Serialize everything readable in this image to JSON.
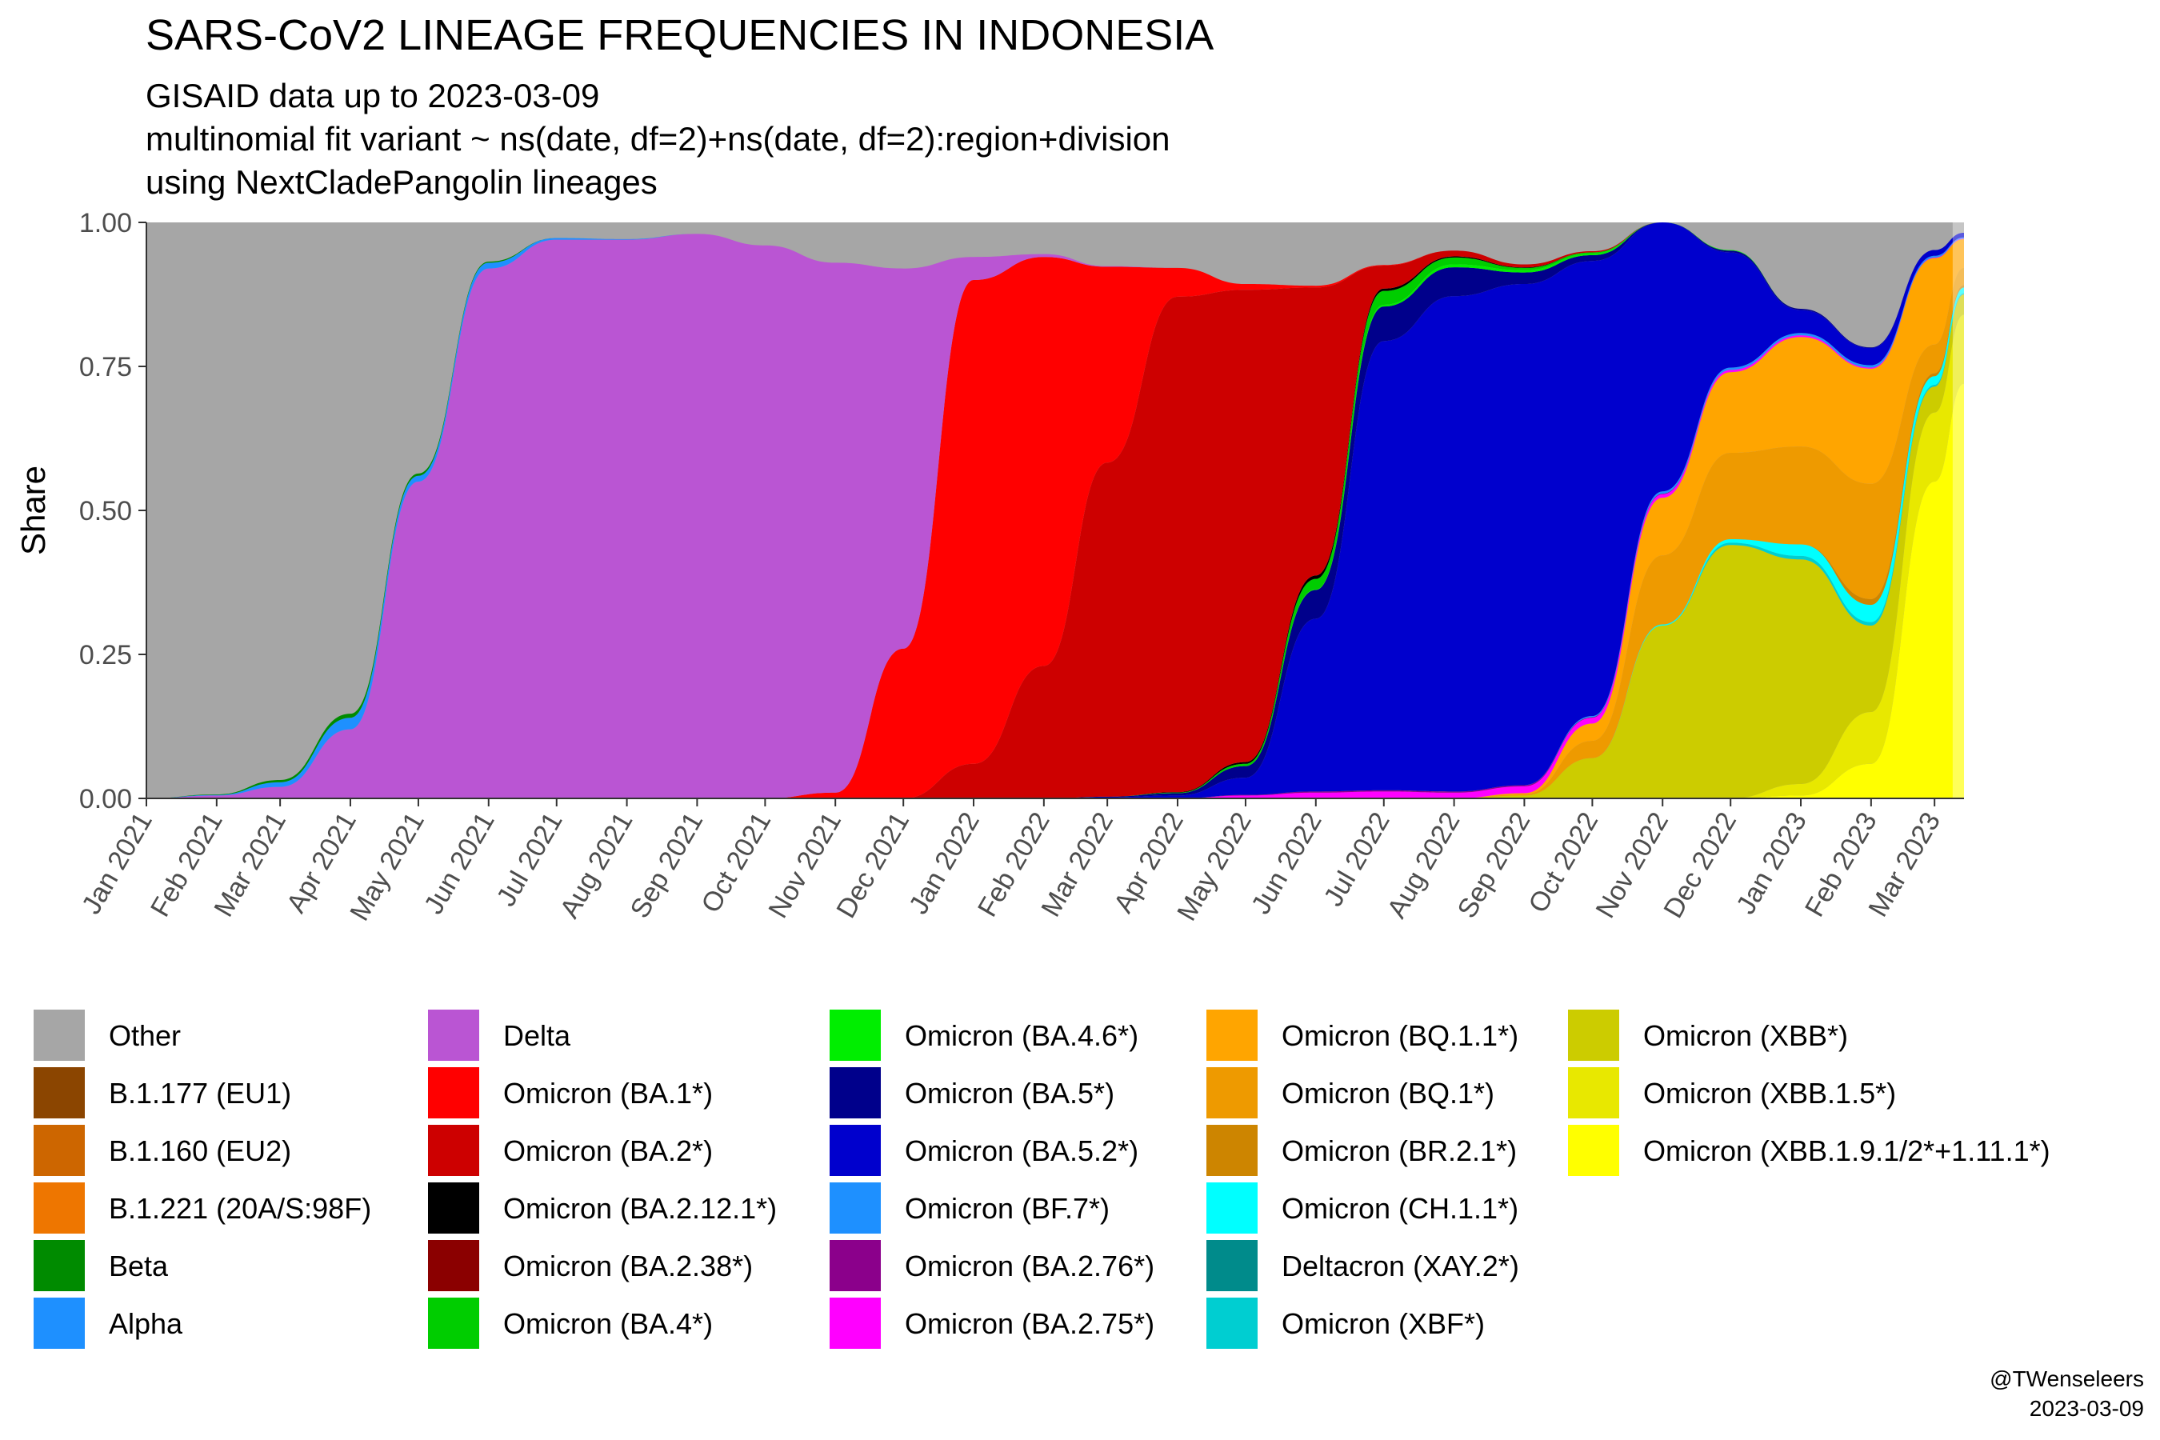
{
  "chart_data": {
    "type": "area",
    "stacked": true,
    "normalized": true,
    "title": "SARS-CoV2 LINEAGE FREQUENCIES IN INDONESIA",
    "subtitle": [
      "GISAID data up to 2023-03-09",
      "multinomial fit variant ~ ns(date, df=2)+ns(date, df=2):region+division",
      "using NextCladePangolin lineages"
    ],
    "ylabel": "Share",
    "ylim": [
      0,
      1
    ],
    "yticks": [
      "0.00",
      "0.25",
      "0.50",
      "0.75",
      "1.00"
    ],
    "xrange": [
      "2021-01-01",
      "2023-03-14"
    ],
    "xticks": [
      {
        "label": "Jan 2021",
        "date": "2021-01-01"
      },
      {
        "label": "Feb 2021",
        "date": "2021-02-01"
      },
      {
        "label": "Mar 2021",
        "date": "2021-03-01"
      },
      {
        "label": "Apr 2021",
        "date": "2021-04-01"
      },
      {
        "label": "May 2021",
        "date": "2021-05-01"
      },
      {
        "label": "Jun 2021",
        "date": "2021-06-01"
      },
      {
        "label": "Jul 2021",
        "date": "2021-07-01"
      },
      {
        "label": "Aug 2021",
        "date": "2021-08-01"
      },
      {
        "label": "Sep 2021",
        "date": "2021-09-01"
      },
      {
        "label": "Oct 2021",
        "date": "2021-10-01"
      },
      {
        "label": "Nov 2021",
        "date": "2021-11-01"
      },
      {
        "label": "Dec 2021",
        "date": "2021-12-01"
      },
      {
        "label": "Jan 2022",
        "date": "2022-01-01"
      },
      {
        "label": "Feb 2022",
        "date": "2022-02-01"
      },
      {
        "label": "Mar 2022",
        "date": "2022-03-01"
      },
      {
        "label": "Apr 2022",
        "date": "2022-04-01"
      },
      {
        "label": "May 2022",
        "date": "2022-05-01"
      },
      {
        "label": "Jun 2022",
        "date": "2022-06-01"
      },
      {
        "label": "Jul 2022",
        "date": "2022-07-01"
      },
      {
        "label": "Aug 2022",
        "date": "2022-08-01"
      },
      {
        "label": "Sep 2022",
        "date": "2022-09-01"
      },
      {
        "label": "Oct 2022",
        "date": "2022-10-01"
      },
      {
        "label": "Nov 2022",
        "date": "2022-11-01"
      },
      {
        "label": "Dec 2022",
        "date": "2022-12-01"
      },
      {
        "label": "Jan 2023",
        "date": "2023-01-01"
      },
      {
        "label": "Feb 2023",
        "date": "2023-02-01"
      },
      {
        "label": "Mar 2023",
        "date": "2023-03-01"
      }
    ],
    "x": [
      "2021-01-01",
      "2021-02-01",
      "2021-03-01",
      "2021-04-01",
      "2021-05-01",
      "2021-06-01",
      "2021-07-01",
      "2021-08-01",
      "2021-09-01",
      "2021-10-01",
      "2021-11-01",
      "2021-12-01",
      "2022-01-01",
      "2022-02-01",
      "2022-03-01",
      "2022-04-01",
      "2022-05-01",
      "2022-06-01",
      "2022-07-01",
      "2022-08-01",
      "2022-09-01",
      "2022-10-01",
      "2022-11-01",
      "2022-12-01",
      "2023-01-01",
      "2023-02-01",
      "2023-03-01",
      "2023-03-14"
    ],
    "series": [
      {
        "name": "Omicron (XBB.1.9.1/2*+1.11.1*)",
        "color": "#FFFF00",
        "values": [
          0,
          0,
          0,
          0,
          0,
          0,
          0,
          0,
          0,
          0,
          0,
          0,
          0,
          0,
          0,
          0,
          0,
          0,
          0,
          0,
          0,
          0,
          0,
          0,
          0.005,
          0.06,
          0.55,
          0.72
        ]
      },
      {
        "name": "Omicron (XBB.1.5*)",
        "color": "#E8E800",
        "values": [
          0,
          0,
          0,
          0,
          0,
          0,
          0,
          0,
          0,
          0,
          0,
          0,
          0,
          0,
          0,
          0,
          0,
          0,
          0,
          0,
          0,
          0,
          0,
          0,
          0.02,
          0.09,
          0.12,
          0.12
        ]
      },
      {
        "name": "Omicron (XBB*)",
        "color": "#CCCC00",
        "values": [
          0,
          0,
          0,
          0,
          0,
          0,
          0,
          0,
          0,
          0,
          0,
          0,
          0,
          0,
          0,
          0,
          0,
          0,
          0,
          0,
          0.005,
          0.07,
          0.3,
          0.44,
          0.39,
          0.15,
          0.045,
          0.035
        ]
      },
      {
        "name": "Omicron (XBF*)",
        "color": "#00CED1",
        "values": [
          0,
          0,
          0,
          0,
          0,
          0,
          0,
          0,
          0,
          0,
          0,
          0,
          0,
          0,
          0,
          0,
          0,
          0,
          0,
          0,
          0,
          0,
          0,
          0.004,
          0.006,
          0.006,
          0.003,
          0.002
        ]
      },
      {
        "name": "Deltacron (XAY.2*)",
        "color": "#008B8B",
        "values": [
          0,
          0,
          0,
          0,
          0,
          0,
          0,
          0,
          0,
          0,
          0,
          0,
          0,
          0,
          0,
          0,
          0,
          0,
          0,
          0,
          0,
          0,
          0,
          0,
          0,
          0,
          0,
          0
        ]
      },
      {
        "name": "Omicron (CH.1.1*)",
        "color": "#00FFFF",
        "values": [
          0,
          0,
          0,
          0,
          0,
          0,
          0,
          0,
          0,
          0,
          0,
          0,
          0,
          0,
          0,
          0,
          0,
          0,
          0,
          0,
          0,
          0,
          0.002,
          0.006,
          0.02,
          0.03,
          0.015,
          0.01
        ]
      },
      {
        "name": "Omicron (BR.2.1*)",
        "color": "#CD8500",
        "values": [
          0,
          0,
          0,
          0,
          0,
          0,
          0,
          0,
          0,
          0,
          0,
          0,
          0,
          0,
          0,
          0,
          0,
          0,
          0,
          0,
          0,
          0,
          0,
          0,
          0,
          0.01,
          0.005,
          0.004
        ]
      },
      {
        "name": "Omicron (BQ.1*)",
        "color": "#EE9A00",
        "values": [
          0,
          0,
          0,
          0,
          0,
          0,
          0,
          0,
          0,
          0,
          0,
          0,
          0,
          0,
          0,
          0,
          0,
          0,
          0,
          0,
          0.002,
          0.03,
          0.12,
          0.15,
          0.17,
          0.2,
          0.05,
          0.03
        ]
      },
      {
        "name": "Omicron (BQ.1.1*)",
        "color": "#FFA500",
        "values": [
          0,
          0,
          0,
          0,
          0,
          0,
          0,
          0,
          0,
          0,
          0,
          0,
          0,
          0,
          0,
          0,
          0,
          0,
          0,
          0,
          0.002,
          0.03,
          0.1,
          0.14,
          0.19,
          0.2,
          0.15,
          0.05
        ]
      },
      {
        "name": "Omicron (BA.2.75*)",
        "color": "#FF00FF",
        "values": [
          0,
          0,
          0,
          0,
          0,
          0,
          0,
          0,
          0,
          0,
          0,
          0,
          0,
          0,
          0,
          0,
          0.005,
          0.01,
          0.012,
          0.01,
          0.012,
          0.01,
          0.006,
          0.004,
          0.003,
          0.002,
          0.001,
          0.001
        ]
      },
      {
        "name": "Omicron (BA.2.76*)",
        "color": "#8B008B",
        "values": [
          0,
          0,
          0,
          0,
          0,
          0,
          0,
          0,
          0,
          0,
          0,
          0,
          0,
          0,
          0,
          0,
          0.001,
          0.002,
          0.002,
          0.002,
          0.002,
          0.001,
          0.001,
          0,
          0,
          0,
          0,
          0
        ]
      },
      {
        "name": "Omicron (BF.7*)",
        "color": "#1E90FF",
        "values": [
          0,
          0,
          0,
          0,
          0,
          0,
          0,
          0,
          0,
          0,
          0,
          0,
          0,
          0,
          0,
          0,
          0,
          0,
          0,
          0,
          0,
          0.002,
          0.004,
          0.004,
          0.004,
          0.004,
          0.003,
          0.002
        ]
      },
      {
        "name": "Omicron (BA.5.2*)",
        "color": "#0000CD",
        "values": [
          0,
          0,
          0,
          0,
          0,
          0,
          0,
          0,
          0,
          0,
          0,
          0,
          0,
          0,
          0.002,
          0.005,
          0.03,
          0.3,
          0.78,
          0.86,
          0.87,
          0.79,
          0.48,
          0.2,
          0.04,
          0.03,
          0.01,
          0.008
        ]
      },
      {
        "name": "Omicron (BA.5*)",
        "color": "#00008B",
        "values": [
          0,
          0,
          0,
          0,
          0,
          0,
          0,
          0,
          0,
          0,
          0,
          0,
          0,
          0,
          0.001,
          0.004,
          0.02,
          0.05,
          0.06,
          0.05,
          0.02,
          0.01,
          0.005,
          0.003,
          0.002,
          0.001,
          0,
          0
        ]
      },
      {
        "name": "Omicron (BA.4.6*)",
        "color": "#00EE00",
        "values": [
          0,
          0,
          0,
          0,
          0,
          0,
          0,
          0,
          0,
          0,
          0,
          0,
          0,
          0,
          0,
          0,
          0,
          0.001,
          0.003,
          0.005,
          0.004,
          0.003,
          0.002,
          0.001,
          0,
          0,
          0,
          0
        ]
      },
      {
        "name": "Omicron (BA.4*)",
        "color": "#00CD00",
        "values": [
          0,
          0,
          0,
          0,
          0,
          0,
          0,
          0,
          0,
          0,
          0,
          0,
          0,
          0,
          0,
          0.001,
          0.004,
          0.018,
          0.024,
          0.012,
          0.004,
          0.002,
          0.001,
          0,
          0,
          0,
          0,
          0
        ]
      },
      {
        "name": "Omicron (BA.2.38*)",
        "color": "#8B0000",
        "values": [
          0,
          0,
          0,
          0,
          0,
          0,
          0,
          0,
          0,
          0,
          0,
          0,
          0,
          0,
          0,
          0,
          0,
          0,
          0,
          0,
          0,
          0,
          0,
          0,
          0,
          0,
          0,
          0
        ]
      },
      {
        "name": "Omicron (BA.2.12.1*)",
        "color": "#000000",
        "values": [
          0,
          0,
          0,
          0,
          0,
          0,
          0,
          0,
          0,
          0,
          0,
          0,
          0,
          0,
          0,
          0.001,
          0.003,
          0.006,
          0.004,
          0.002,
          0.001,
          0,
          0,
          0,
          0,
          0,
          0,
          0
        ]
      },
      {
        "name": "Omicron (BA.2*)",
        "color": "#CD0000",
        "values": [
          0,
          0,
          0,
          0,
          0,
          0,
          0,
          0,
          0,
          0,
          0,
          0,
          0.06,
          0.23,
          0.58,
          0.86,
          0.82,
          0.5,
          0.04,
          0.01,
          0.005,
          0.002,
          0.001,
          0,
          0,
          0,
          0,
          0
        ]
      },
      {
        "name": "Omicron (BA.1*)",
        "color": "#FF0000",
        "values": [
          0,
          0,
          0,
          0,
          0,
          0,
          0,
          0,
          0,
          0,
          0.01,
          0.26,
          0.84,
          0.71,
          0.34,
          0.05,
          0.01,
          0.003,
          0.001,
          0,
          0,
          0,
          0,
          0,
          0,
          0,
          0,
          0
        ]
      },
      {
        "name": "Delta",
        "color": "#BA55D3",
        "values": [
          0,
          0.005,
          0.02,
          0.12,
          0.55,
          0.92,
          0.97,
          0.97,
          0.98,
          0.96,
          0.92,
          0.66,
          0.04,
          0.005,
          0.001,
          0,
          0,
          0,
          0,
          0,
          0,
          0,
          0,
          0,
          0,
          0,
          0,
          0
        ]
      },
      {
        "name": "Alpha",
        "color": "#1E90FF",
        "values": [
          0,
          0.001,
          0.008,
          0.02,
          0.01,
          0.01,
          0.003,
          0.001,
          0,
          0,
          0,
          0,
          0,
          0,
          0,
          0,
          0,
          0,
          0,
          0,
          0,
          0,
          0,
          0,
          0,
          0,
          0,
          0
        ]
      },
      {
        "name": "Beta",
        "color": "#008B00",
        "values": [
          0,
          0.001,
          0.004,
          0.007,
          0.004,
          0.002,
          0,
          0,
          0,
          0,
          0,
          0,
          0,
          0,
          0,
          0,
          0,
          0,
          0,
          0,
          0,
          0,
          0,
          0,
          0,
          0,
          0,
          0
        ]
      },
      {
        "name": "B.1.221 (20A/S:98F)",
        "color": "#EE7600",
        "values": [
          0,
          0,
          0,
          0,
          0,
          0,
          0,
          0,
          0,
          0,
          0,
          0,
          0,
          0,
          0,
          0,
          0,
          0,
          0,
          0,
          0,
          0,
          0,
          0,
          0,
          0,
          0,
          0
        ]
      },
      {
        "name": "B.1.160 (EU2)",
        "color": "#CD6600",
        "values": [
          0,
          0,
          0,
          0,
          0,
          0,
          0,
          0,
          0,
          0,
          0,
          0,
          0,
          0,
          0,
          0,
          0,
          0,
          0,
          0,
          0,
          0,
          0,
          0,
          0,
          0,
          0,
          0
        ]
      },
      {
        "name": "B.1.177 (EU1)",
        "color": "#8B4500",
        "values": [
          0,
          0,
          0,
          0,
          0,
          0,
          0,
          0,
          0,
          0,
          0,
          0,
          0,
          0,
          0,
          0,
          0,
          0,
          0,
          0,
          0,
          0,
          0,
          0,
          0,
          0,
          0,
          0
        ]
      },
      {
        "name": "Other",
        "color": "#A6A6A6",
        "values": null
      }
    ],
    "legend": {
      "placement": "bottom",
      "columns": [
        [
          "Other",
          "B.1.177 (EU1)",
          "B.1.160 (EU2)",
          "B.1.221 (20A/S:98F)",
          "Beta",
          "Alpha"
        ],
        [
          "Delta",
          "Omicron (BA.1*)",
          "Omicron (BA.2*)",
          "Omicron (BA.2.12.1*)",
          "Omicron (BA.2.38*)",
          "Omicron (BA.4*)"
        ],
        [
          "Omicron (BA.4.6*)",
          "Omicron (BA.5*)",
          "Omicron (BA.5.2*)",
          "Omicron (BF.7*)",
          "Omicron (BA.2.76*)",
          "Omicron (BA.2.75*)"
        ],
        [
          "Omicron (BQ.1.1*)",
          "Omicron (BQ.1*)",
          "Omicron (BR.2.1*)",
          "Omicron (CH.1.1*)",
          "Deltacron (XAY.2*)",
          "Omicron (XBF*)"
        ],
        [
          "Omicron (XBB*)",
          "Omicron (XBB.1.5*)",
          "Omicron (XBB.1.9.1/2*+1.11.1*)"
        ]
      ]
    },
    "caption": [
      "@TWenseleers",
      "2023-03-09"
    ]
  }
}
